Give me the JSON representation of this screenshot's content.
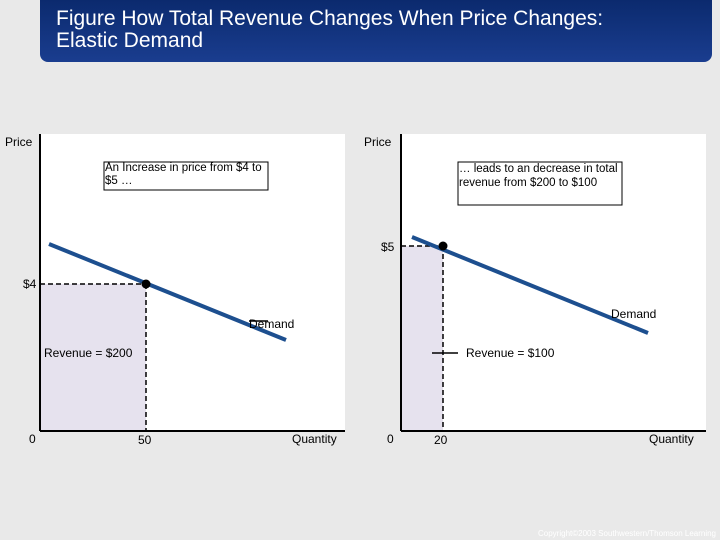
{
  "title": {
    "line1": "Figure  How Total Revenue Changes When Price Changes:",
    "line2": "Elastic Demand"
  },
  "left_panel": {
    "y_axis_label": "Price",
    "x_axis_label": "Quantity",
    "origin_label": "0",
    "price_label": "$4",
    "quantity_label": "50",
    "annotation": "An Increase in price from $4 to $5 …",
    "demand_label": "Demand",
    "revenue_label": "Revenue = $200"
  },
  "right_panel": {
    "y_axis_label": "Price",
    "x_axis_label": "Quantity",
    "origin_label": "0",
    "price_label": "$5",
    "quantity_label": "20",
    "annotation": "… leads to an decrease in total revenue from $200 to $100",
    "demand_label": "Demand",
    "revenue_label": "Revenue = $100"
  },
  "copyright": "Copyright©2003  Southwestern/Thomson Learning",
  "colors": {
    "demand_line": "#1d4f8f",
    "revenue_fill": "#e6e2ee",
    "panel_fill": "#ffffff",
    "title_bg": "#0b2a6e"
  }
}
